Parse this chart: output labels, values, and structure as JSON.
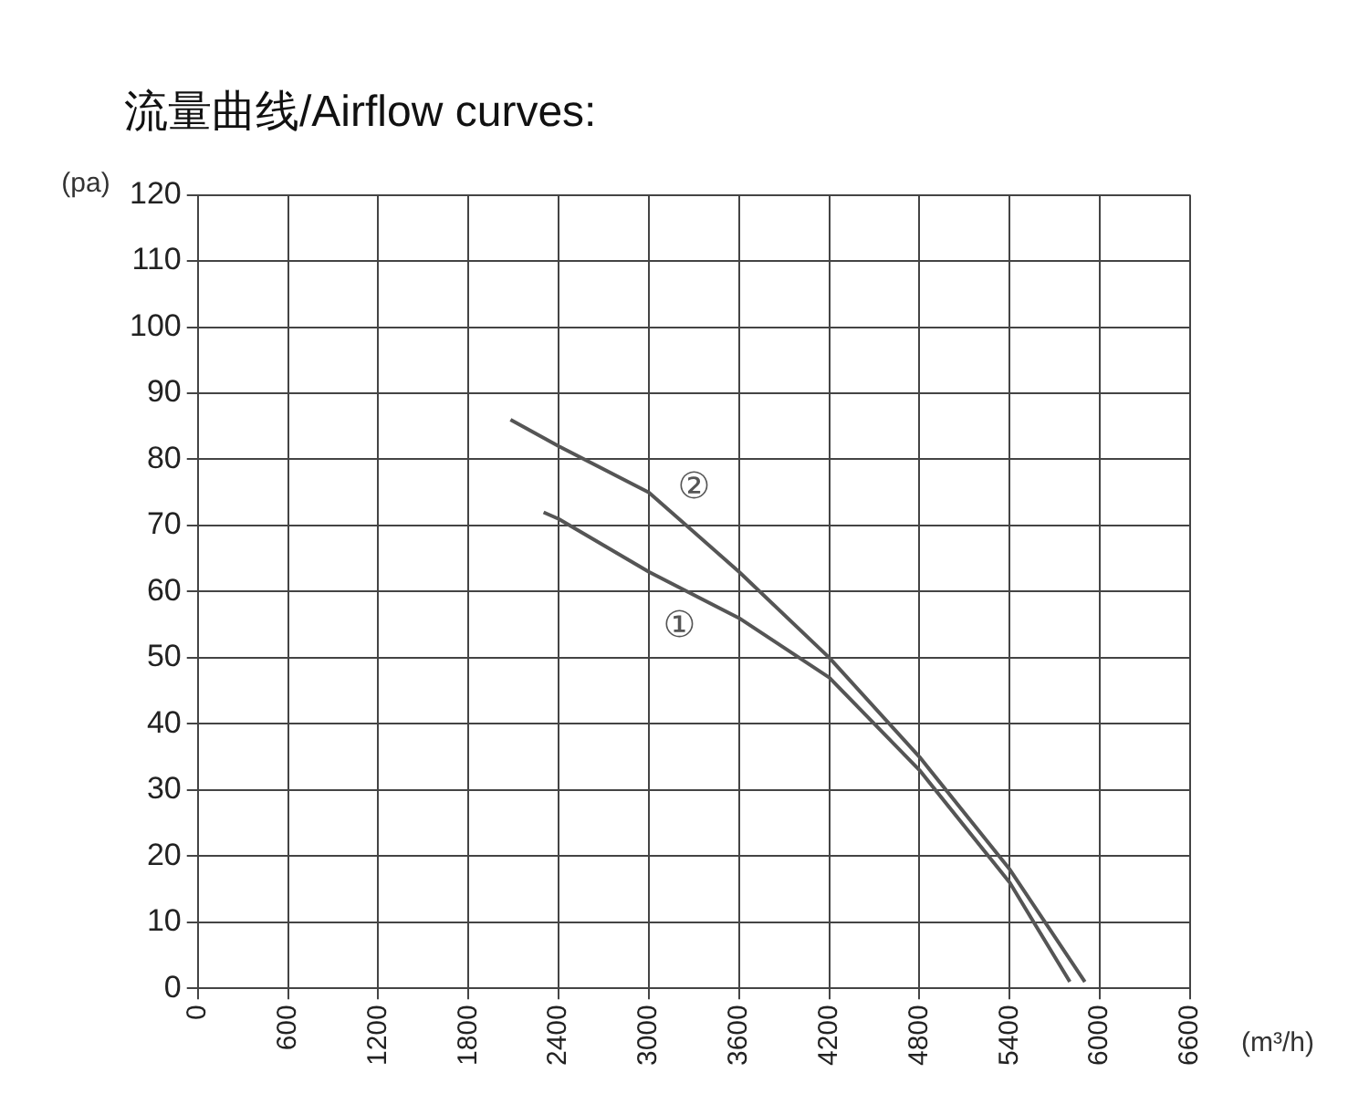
{
  "chart_data": {
    "type": "line",
    "title": "流量曲线/Airflow curves:",
    "xlabel": "(m³/h)",
    "ylabel": "(pa)",
    "xlim": [
      0,
      6600
    ],
    "xticks": [
      0,
      600,
      1200,
      1800,
      2400,
      3000,
      3600,
      4200,
      4800,
      5400,
      6000,
      6600
    ],
    "ylim": [
      0,
      120
    ],
    "yticks": [
      0,
      10,
      20,
      30,
      40,
      50,
      60,
      70,
      80,
      90,
      100,
      110,
      120
    ],
    "grid": true,
    "marker": "none",
    "line_style": "solid",
    "series": [
      {
        "name": "①",
        "color": "#555555",
        "x": [
          2300,
          2400,
          3000,
          3600,
          4200,
          4800,
          5400,
          5800
        ],
        "values": [
          72,
          71,
          63,
          56,
          47,
          33,
          16,
          1
        ]
      },
      {
        "name": "②",
        "color": "#555555",
        "x": [
          2080,
          2400,
          3000,
          3600,
          4200,
          4800,
          5400,
          5900
        ],
        "values": [
          86,
          82,
          75,
          63,
          50,
          35,
          18,
          1
        ]
      }
    ]
  }
}
